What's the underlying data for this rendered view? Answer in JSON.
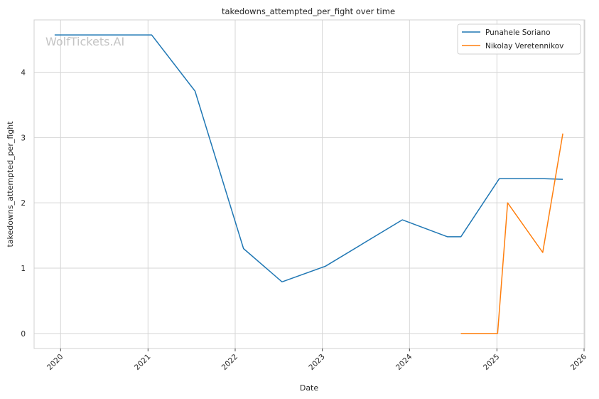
{
  "watermark": "WolfTickets.AI",
  "chart_data": {
    "type": "line",
    "title": "takedowns_attempted_per_fight over time",
    "xlabel": "Date",
    "ylabel": "takedowns_attempted_per_fight",
    "x_ticks": [
      "2020",
      "2021",
      "2022",
      "2023",
      "2024",
      "2025",
      "2026"
    ],
    "y_ticks": [
      0,
      1,
      2,
      3,
      4
    ],
    "xlim": [
      "2019-09-12",
      "2026-01-04"
    ],
    "ylim": [
      -0.23,
      4.8
    ],
    "grid": true,
    "legend_position": "top-right",
    "series": [
      {
        "name": "Punahele Soriano",
        "color": "#1f77b4",
        "points": [
          {
            "date": "2019-12-07",
            "value": 4.57
          },
          {
            "date": "2021-01-16",
            "value": 4.57
          },
          {
            "date": "2021-07-17",
            "value": 3.71
          },
          {
            "date": "2022-02-05",
            "value": 1.3
          },
          {
            "date": "2022-07-16",
            "value": 0.79
          },
          {
            "date": "2023-01-14",
            "value": 1.03
          },
          {
            "date": "2023-12-02",
            "value": 1.74
          },
          {
            "date": "2024-06-08",
            "value": 1.48
          },
          {
            "date": "2024-08-03",
            "value": 1.48
          },
          {
            "date": "2025-01-11",
            "value": 2.37
          },
          {
            "date": "2025-07-19",
            "value": 2.37
          },
          {
            "date": "2025-10-04",
            "value": 2.36
          }
        ]
      },
      {
        "name": "Nikolay Veretennikov",
        "color": "#ff7f0e",
        "points": [
          {
            "date": "2024-08-03",
            "value": 0.0
          },
          {
            "date": "2025-01-04",
            "value": 0.0
          },
          {
            "date": "2025-02-15",
            "value": 2.0
          },
          {
            "date": "2025-07-12",
            "value": 1.24
          },
          {
            "date": "2025-10-04",
            "value": 3.06
          }
        ]
      }
    ]
  }
}
